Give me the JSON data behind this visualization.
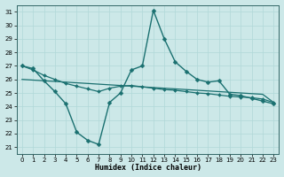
{
  "bg_color": "#cce8e8",
  "line_color": "#1a7070",
  "grid_color": "#b0d8d8",
  "xlabel": "Humidex (Indice chaleur)",
  "xlim": [
    -0.5,
    23.5
  ],
  "ylim": [
    20.5,
    31.5
  ],
  "yticks": [
    21,
    22,
    23,
    24,
    25,
    26,
    27,
    28,
    29,
    30,
    31
  ],
  "xticks": [
    0,
    1,
    2,
    3,
    4,
    5,
    6,
    7,
    8,
    9,
    10,
    11,
    12,
    13,
    14,
    15,
    16,
    17,
    18,
    19,
    20,
    21,
    22,
    23
  ],
  "series": [
    {
      "x": [
        0,
        1,
        2,
        3,
        4,
        5,
        6,
        7,
        8,
        9,
        10,
        11,
        12,
        13,
        14,
        15,
        16,
        17,
        18,
        19,
        20,
        21,
        22,
        23
      ],
      "y": [
        27.0,
        26.8,
        25.9,
        25.1,
        24.2,
        22.1,
        21.5,
        21.2,
        24.3,
        25.0,
        26.7,
        27.0,
        31.1,
        29.0,
        27.3,
        26.6,
        26.0,
        25.8,
        25.9,
        24.9,
        24.8,
        24.6,
        24.4,
        24.2
      ],
      "marker": "D",
      "markersize": 2.5,
      "linewidth": 1.0
    },
    {
      "x": [
        0,
        1,
        2,
        3,
        4,
        5,
        6,
        7,
        8,
        9,
        10,
        11,
        12,
        13,
        14,
        15,
        16,
        17,
        18,
        19,
        20,
        21,
        22,
        23
      ],
      "y": [
        27.0,
        26.7,
        26.3,
        26.0,
        25.7,
        25.5,
        25.3,
        25.1,
        25.35,
        25.5,
        25.55,
        25.45,
        25.35,
        25.25,
        25.2,
        25.1,
        25.0,
        24.95,
        24.85,
        24.75,
        24.7,
        24.65,
        24.55,
        24.3
      ],
      "marker": "D",
      "markersize": 2.0,
      "linewidth": 0.9
    },
    {
      "x": [
        0,
        1,
        2,
        3,
        4,
        5,
        6,
        7,
        8,
        9,
        10,
        11,
        12,
        13,
        14,
        15,
        16,
        17,
        18,
        19,
        20,
        21,
        22,
        23
      ],
      "y": [
        26.0,
        25.95,
        25.9,
        25.85,
        25.8,
        25.75,
        25.7,
        25.65,
        25.6,
        25.55,
        25.5,
        25.45,
        25.4,
        25.35,
        25.3,
        25.25,
        25.2,
        25.15,
        25.1,
        25.05,
        25.0,
        24.95,
        24.9,
        24.3
      ],
      "marker": null,
      "markersize": 0,
      "linewidth": 0.9
    }
  ]
}
